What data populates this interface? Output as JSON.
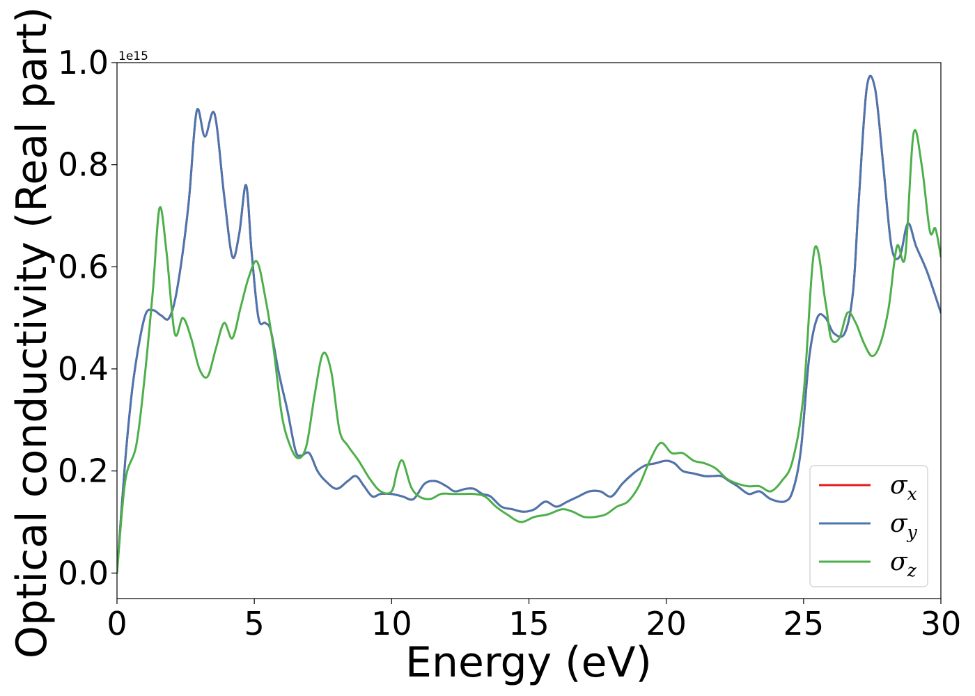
{
  "chart_data": {
    "type": "line",
    "title": "",
    "xlabel": "Energy (eV)",
    "ylabel": "Optical conductivity (Real part)",
    "y_offset_label": "1e15",
    "xlim": [
      0,
      30
    ],
    "ylim": [
      -0.05,
      1.0
    ],
    "x_ticks": [
      0,
      5,
      10,
      15,
      20,
      25,
      30
    ],
    "x_tick_labels": [
      "0",
      "5",
      "10",
      "15",
      "20",
      "25",
      "30"
    ],
    "y_ticks": [
      0.0,
      0.2,
      0.4,
      0.6,
      0.8,
      1.0
    ],
    "y_tick_labels": [
      "0.0",
      "0.2",
      "0.4",
      "0.6",
      "0.8",
      "1.0"
    ],
    "grid": false,
    "legend_position": "bottom-right",
    "colors": {
      "sigma_x": "#e41a1c",
      "sigma_y": "#4a76b0",
      "sigma_z": "#4daf4a"
    },
    "series": [
      {
        "name": "σx",
        "symbol": "σ",
        "subscript": "x",
        "color": "#e41a1c",
        "x": [
          0,
          0.3,
          0.6,
          1.0,
          1.3,
          1.6,
          1.9,
          2.2,
          2.6,
          2.9,
          3.2,
          3.55,
          3.9,
          4.2,
          4.45,
          4.7,
          4.9,
          5.15,
          5.4,
          5.6,
          5.9,
          6.2,
          6.5,
          6.7,
          7.0,
          7.3,
          7.6,
          8.0,
          8.4,
          8.7,
          9.0,
          9.3,
          9.6,
          10.0,
          10.4,
          10.8,
          11.2,
          11.6,
          12.0,
          12.3,
          12.7,
          13.0,
          13.3,
          13.6,
          14.0,
          14.4,
          14.8,
          15.2,
          15.6,
          16.0,
          16.4,
          16.8,
          17.2,
          17.6,
          18.0,
          18.4,
          18.8,
          19.2,
          19.6,
          20.0,
          20.3,
          20.6,
          21.0,
          21.4,
          21.7,
          22.0,
          22.3,
          22.6,
          23.0,
          23.4,
          23.8,
          24.3,
          24.6,
          24.9,
          25.2,
          25.5,
          25.8,
          26.1,
          26.5,
          26.8,
          27.0,
          27.3,
          27.6,
          27.9,
          28.2,
          28.5,
          28.8,
          29.1,
          29.5,
          30.0
        ],
        "y": [
          0,
          0.22,
          0.38,
          0.5,
          0.515,
          0.505,
          0.5,
          0.56,
          0.72,
          0.905,
          0.855,
          0.9,
          0.74,
          0.62,
          0.665,
          0.76,
          0.63,
          0.5,
          0.49,
          0.475,
          0.39,
          0.32,
          0.24,
          0.23,
          0.235,
          0.2,
          0.18,
          0.165,
          0.18,
          0.19,
          0.17,
          0.15,
          0.155,
          0.155,
          0.15,
          0.145,
          0.175,
          0.18,
          0.17,
          0.16,
          0.165,
          0.165,
          0.155,
          0.15,
          0.13,
          0.125,
          0.12,
          0.125,
          0.14,
          0.13,
          0.14,
          0.15,
          0.16,
          0.16,
          0.15,
          0.175,
          0.195,
          0.21,
          0.215,
          0.22,
          0.215,
          0.2,
          0.195,
          0.19,
          0.19,
          0.19,
          0.18,
          0.17,
          0.155,
          0.16,
          0.145,
          0.14,
          0.16,
          0.24,
          0.42,
          0.5,
          0.5,
          0.47,
          0.47,
          0.55,
          0.72,
          0.95,
          0.95,
          0.8,
          0.64,
          0.62,
          0.685,
          0.64,
          0.59,
          0.51
        ]
      },
      {
        "name": "σy",
        "symbol": "σ",
        "subscript": "y",
        "color": "#4a76b0",
        "x": [
          0,
          0.3,
          0.6,
          1.0,
          1.3,
          1.6,
          1.9,
          2.2,
          2.6,
          2.9,
          3.2,
          3.55,
          3.9,
          4.2,
          4.45,
          4.7,
          4.9,
          5.15,
          5.4,
          5.6,
          5.9,
          6.2,
          6.5,
          6.7,
          7.0,
          7.3,
          7.6,
          8.0,
          8.4,
          8.7,
          9.0,
          9.3,
          9.6,
          10.0,
          10.4,
          10.8,
          11.2,
          11.6,
          12.0,
          12.3,
          12.7,
          13.0,
          13.3,
          13.6,
          14.0,
          14.4,
          14.8,
          15.2,
          15.6,
          16.0,
          16.4,
          16.8,
          17.2,
          17.6,
          18.0,
          18.4,
          18.8,
          19.2,
          19.6,
          20.0,
          20.3,
          20.6,
          21.0,
          21.4,
          21.7,
          22.0,
          22.3,
          22.6,
          23.0,
          23.4,
          23.8,
          24.3,
          24.6,
          24.9,
          25.2,
          25.5,
          25.8,
          26.1,
          26.5,
          26.8,
          27.0,
          27.3,
          27.6,
          27.9,
          28.2,
          28.5,
          28.8,
          29.1,
          29.5,
          30.0
        ],
        "y": [
          0,
          0.22,
          0.38,
          0.5,
          0.515,
          0.505,
          0.5,
          0.56,
          0.72,
          0.905,
          0.855,
          0.9,
          0.74,
          0.62,
          0.665,
          0.76,
          0.63,
          0.5,
          0.49,
          0.475,
          0.39,
          0.32,
          0.24,
          0.23,
          0.235,
          0.2,
          0.18,
          0.165,
          0.18,
          0.19,
          0.17,
          0.15,
          0.155,
          0.155,
          0.15,
          0.145,
          0.175,
          0.18,
          0.17,
          0.16,
          0.165,
          0.165,
          0.155,
          0.15,
          0.13,
          0.125,
          0.12,
          0.125,
          0.14,
          0.13,
          0.14,
          0.15,
          0.16,
          0.16,
          0.15,
          0.175,
          0.195,
          0.21,
          0.215,
          0.22,
          0.215,
          0.2,
          0.195,
          0.19,
          0.19,
          0.19,
          0.18,
          0.17,
          0.155,
          0.16,
          0.145,
          0.14,
          0.16,
          0.24,
          0.42,
          0.5,
          0.5,
          0.47,
          0.47,
          0.55,
          0.72,
          0.95,
          0.95,
          0.8,
          0.64,
          0.62,
          0.685,
          0.64,
          0.59,
          0.51
        ]
      },
      {
        "name": "σz",
        "symbol": "σ",
        "subscript": "z",
        "color": "#4daf4a",
        "x": [
          0,
          0.3,
          0.7,
          1.0,
          1.3,
          1.55,
          1.8,
          2.1,
          2.4,
          2.7,
          3.0,
          3.3,
          3.6,
          3.9,
          4.2,
          4.5,
          4.8,
          5.1,
          5.4,
          5.7,
          6.0,
          6.3,
          6.6,
          6.9,
          7.2,
          7.5,
          7.8,
          8.1,
          8.4,
          8.8,
          9.2,
          9.6,
          10.0,
          10.2,
          10.4,
          10.7,
          11.0,
          11.4,
          11.8,
          12.2,
          12.6,
          13.0,
          13.4,
          13.8,
          14.2,
          14.7,
          15.2,
          15.7,
          16.2,
          16.6,
          17.0,
          17.4,
          17.8,
          18.2,
          18.6,
          19.0,
          19.4,
          19.8,
          20.2,
          20.6,
          21.0,
          21.4,
          21.8,
          22.2,
          22.6,
          23.0,
          23.4,
          23.8,
          24.2,
          24.6,
          25.0,
          25.4,
          25.8,
          26.0,
          26.3,
          26.6,
          26.9,
          27.2,
          27.5,
          27.8,
          28.1,
          28.4,
          28.7,
          29.0,
          29.3,
          29.6,
          29.8,
          30.0
        ],
        "y": [
          0,
          0.18,
          0.25,
          0.38,
          0.55,
          0.715,
          0.63,
          0.47,
          0.5,
          0.46,
          0.4,
          0.385,
          0.44,
          0.49,
          0.46,
          0.52,
          0.58,
          0.61,
          0.54,
          0.44,
          0.31,
          0.25,
          0.225,
          0.25,
          0.35,
          0.43,
          0.395,
          0.28,
          0.25,
          0.22,
          0.185,
          0.16,
          0.16,
          0.2,
          0.22,
          0.17,
          0.15,
          0.145,
          0.155,
          0.155,
          0.155,
          0.155,
          0.15,
          0.13,
          0.115,
          0.1,
          0.11,
          0.115,
          0.125,
          0.12,
          0.11,
          0.11,
          0.115,
          0.13,
          0.14,
          0.17,
          0.22,
          0.255,
          0.235,
          0.235,
          0.22,
          0.215,
          0.205,
          0.185,
          0.175,
          0.17,
          0.17,
          0.16,
          0.18,
          0.22,
          0.35,
          0.635,
          0.53,
          0.46,
          0.46,
          0.51,
          0.49,
          0.45,
          0.425,
          0.45,
          0.52,
          0.64,
          0.62,
          0.86,
          0.8,
          0.67,
          0.675,
          0.62
        ]
      }
    ]
  }
}
